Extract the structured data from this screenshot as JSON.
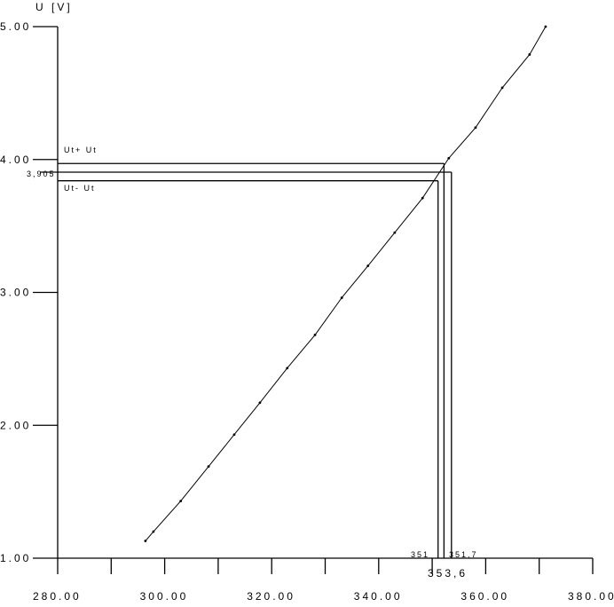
{
  "chart_data": {
    "type": "line",
    "title": "",
    "xlabel": "",
    "ylabel": "U [V]",
    "xlim": [
      280,
      380
    ],
    "ylim": [
      1,
      5
    ],
    "x_ticks": [
      "280.00",
      "300.00",
      "320.00",
      "340.00",
      "360.00",
      "380.00"
    ],
    "y_ticks": [
      "1.00",
      "2.00",
      "3.00",
      "4.00",
      "5.00"
    ],
    "grid": false,
    "series": [
      {
        "x": [
          296.4,
          297.9,
          303.0,
          308.2,
          313.0,
          317.8,
          322.9,
          328.1,
          333.1,
          338.0,
          343.0,
          348.2,
          353.1,
          358.1,
          363.1,
          368.2,
          371.2
        ],
        "y": [
          1.13,
          1.2,
          1.43,
          1.69,
          1.93,
          2.17,
          2.43,
          2.68,
          2.96,
          3.2,
          3.45,
          3.71,
          4.01,
          4.24,
          4.54,
          4.79,
          5.0
        ]
      }
    ],
    "annotations": {
      "upper": {
        "label": "Ut+ Ut",
        "y": 3.97,
        "x": 352.2
      },
      "center": {
        "label": "3,905",
        "y": 3.905,
        "x": 353.6,
        "x_label": "353,6"
      },
      "lower": {
        "label": "Ut- Ut",
        "y": 3.84,
        "x": 351.1
      },
      "x_left_label": "351",
      "x_right_label": "351,7"
    }
  }
}
